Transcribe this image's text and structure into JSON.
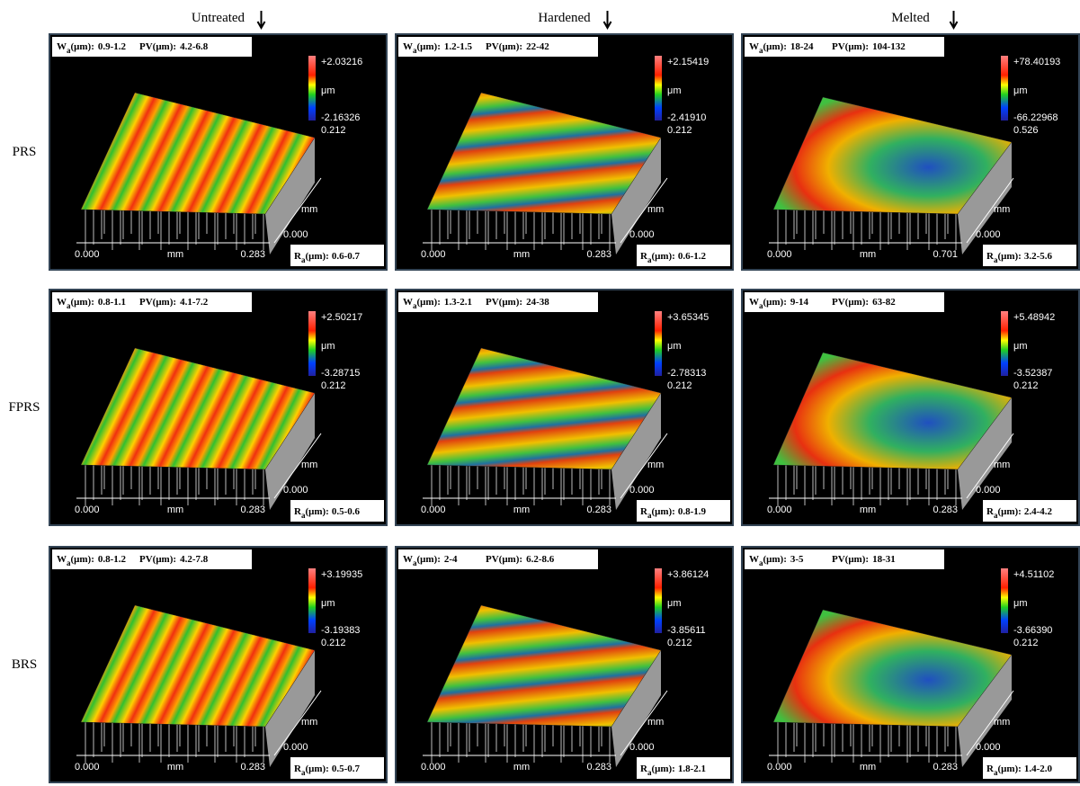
{
  "columns": [
    "Untreated",
    "Hardened",
    "Melted"
  ],
  "rows": [
    "PRS",
    "FPRS",
    "BRS"
  ],
  "labels": {
    "w": "W",
    "r": "R",
    "sub": "a",
    "unit": "(μm):",
    "pv": "PV(μm):",
    "um": "μm",
    "mm": "mm",
    "zero": "0.000"
  },
  "panels": [
    {
      "wa": "0.9-1.2",
      "pv": "4.2-6.8",
      "ra": "0.6-0.7",
      "zmax": "+2.03216",
      "zmin": "-2.16326",
      "zscale": "0.212",
      "xmax": "0.283"
    },
    {
      "wa": "1.2-1.5",
      "pv": "22-42",
      "ra": "0.6-1.2",
      "zmax": "+2.15419",
      "zmin": "-2.41910",
      "zscale": "0.212",
      "xmax": "0.283"
    },
    {
      "wa": "18-24",
      "pv": "104-132",
      "ra": "3.2-5.6",
      "zmax": "+78.40193",
      "zmin": "-66.22968",
      "zscale": "0.526",
      "xmax": "0.701"
    },
    {
      "wa": "0.8-1.1",
      "pv": "4.1-7.2",
      "ra": "0.5-0.6",
      "zmax": "+2.50217",
      "zmin": "-3.28715",
      "zscale": "0.212",
      "xmax": "0.283"
    },
    {
      "wa": "1.3-2.1",
      "pv": "24-38",
      "ra": "0.8-1.9",
      "zmax": "+3.65345",
      "zmin": "-2.78313",
      "zscale": "0.212",
      "xmax": "0.283"
    },
    {
      "wa": "9-14",
      "pv": "63-82",
      "ra": "2.4-4.2",
      "zmax": "+5.48942",
      "zmin": "-3.52387",
      "zscale": "0.212",
      "xmax": "0.283"
    },
    {
      "wa": "0.8-1.2",
      "pv": "4.2-7.8",
      "ra": "0.5-0.7",
      "zmax": "+3.19935",
      "zmin": "-3.19383",
      "zscale": "0.212",
      "xmax": "0.283"
    },
    {
      "wa": "2-4",
      "pv": "6.2-8.6",
      "ra": "1.8-2.1",
      "zmax": "+3.86124",
      "zmin": "-3.85611",
      "zscale": "0.212",
      "xmax": "0.283"
    },
    {
      "wa": "3-5",
      "pv": "18-31",
      "ra": "1.4-2.0",
      "zmax": "+4.51102",
      "zmin": "-3.66390",
      "zscale": "0.212",
      "xmax": "0.283"
    }
  ]
}
